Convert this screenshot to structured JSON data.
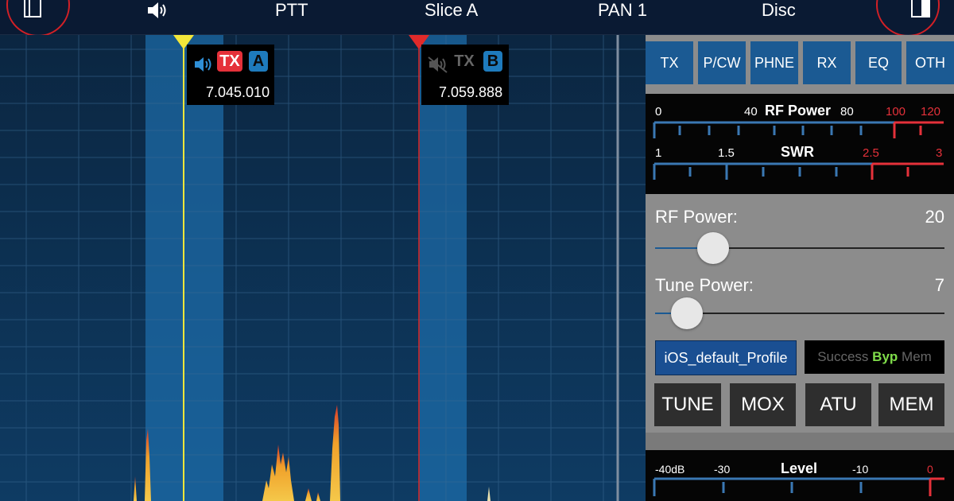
{
  "topbar": {
    "left_icon": "sidebar-left-icon",
    "volume_icon": "speaker-icon",
    "ptt": "PTT",
    "slice": "Slice A",
    "pan": "PAN 1",
    "disc": "Disc",
    "right_icon": "sidebar-right-icon"
  },
  "slices": {
    "a": {
      "tx": "TX",
      "letter": "A",
      "freq": "7.045.010",
      "tx_active": true
    },
    "b": {
      "tx": "TX",
      "letter": "B",
      "freq": "7.059.888",
      "tx_active": false
    }
  },
  "tabs": [
    "TX",
    "P/CW",
    "PHNE",
    "RX",
    "EQ",
    "OTH"
  ],
  "meters": {
    "rf": {
      "title": "RF Power",
      "scale": [
        "0",
        "40",
        "80",
        "100",
        "120"
      ]
    },
    "swr": {
      "title": "SWR",
      "scale": [
        "1",
        "1.5",
        "2.5",
        "3"
      ]
    }
  },
  "controls": {
    "rf_power": {
      "label": "RF Power:",
      "value": "20",
      "fraction": 0.2
    },
    "tune_power": {
      "label": "Tune Power:",
      "value": "7",
      "fraction": 0.07
    }
  },
  "profile": "iOS_default_Profile",
  "atu_status": {
    "success": "Success",
    "byp": "Byp",
    "mem": "Mem"
  },
  "buttons": [
    "TUNE",
    "MOX",
    "ATU",
    "MEM"
  ],
  "level_meter": {
    "title": "Level",
    "scale": [
      "-40dB",
      "-30",
      "-10",
      "0"
    ]
  },
  "colors": {
    "tx_red": "#e5313a",
    "slice_blue": "#1e7bbd",
    "slice_a_line": "#f2e63a",
    "slice_b_line": "#e02a2a",
    "tab_blue": "#1b5a93"
  }
}
